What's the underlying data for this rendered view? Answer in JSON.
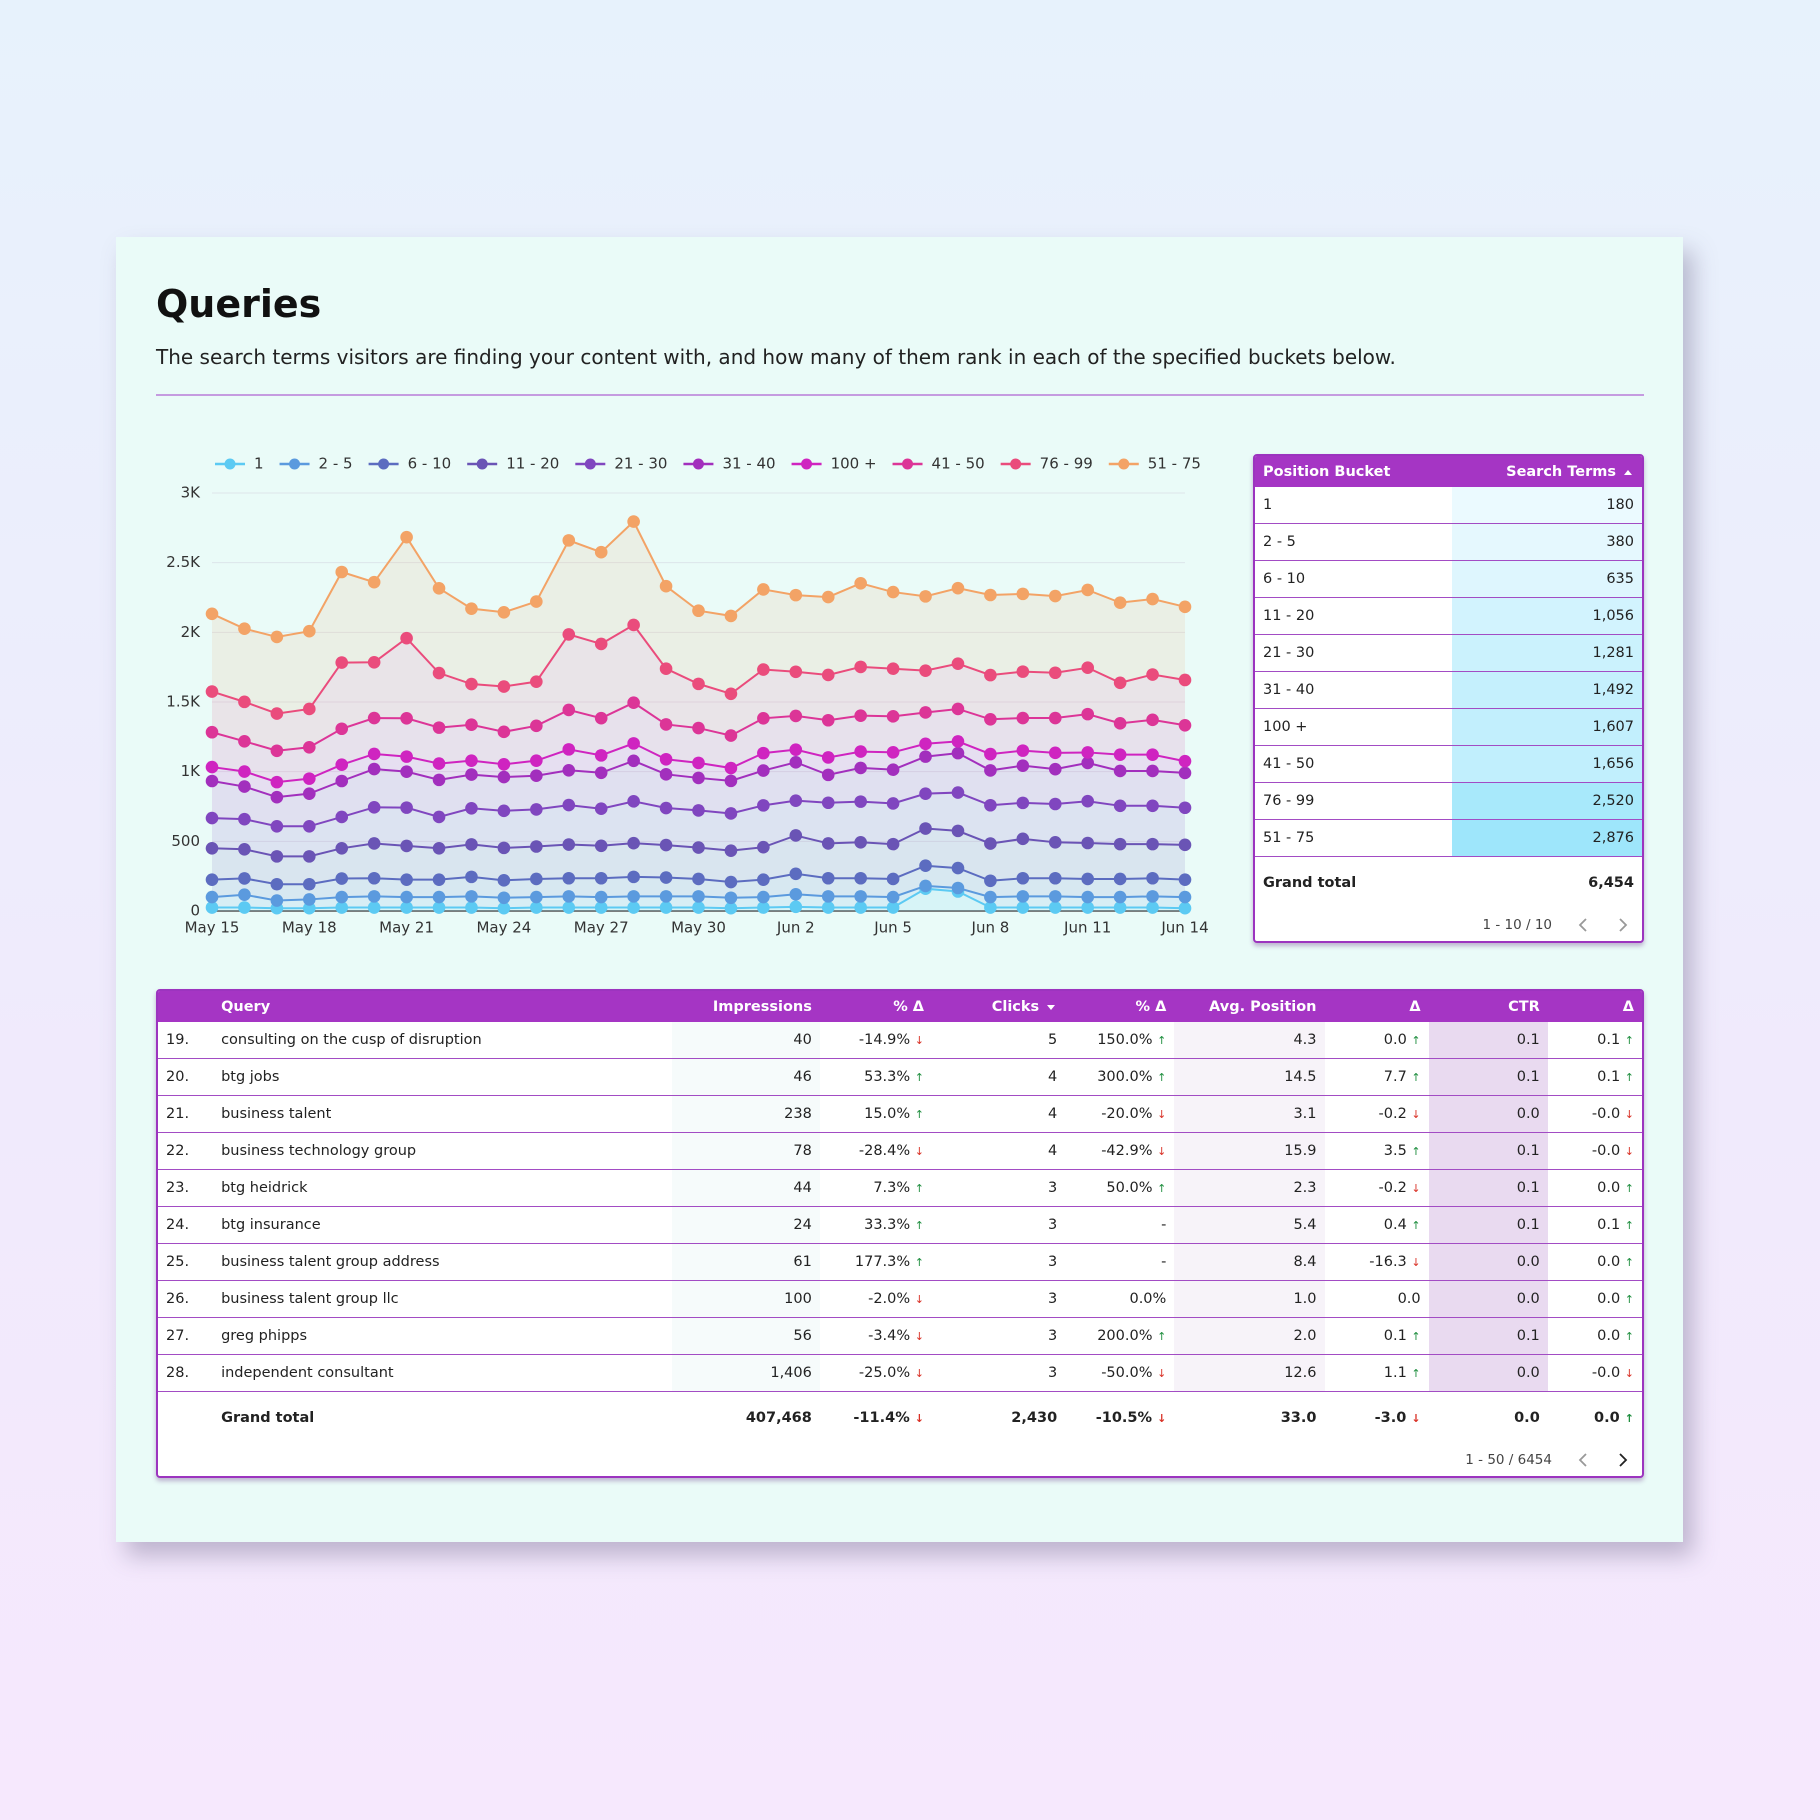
{
  "header": {
    "title": "Queries",
    "subtitle": "The search terms visitors are finding your content with,  and how many of them rank in each of the specified buckets below."
  },
  "chart_data": {
    "type": "line",
    "stacked": true,
    "area": true,
    "legend": "top",
    "grid": true,
    "x": [
      "May 15",
      null,
      null,
      "May 18",
      null,
      null,
      "May 21",
      null,
      null,
      "May 24",
      null,
      null,
      "May 27",
      null,
      null,
      "May 30",
      null,
      null,
      "Jun 2",
      null,
      null,
      "Jun 5",
      null,
      null,
      "Jun 8",
      null,
      null,
      "Jun 11",
      null,
      null,
      "Jun 14"
    ],
    "ylim": [
      0,
      3000
    ],
    "yticks": [
      0,
      500,
      {
        "value": 1000,
        "label": "1K"
      },
      {
        "value": 1500,
        "label": "1.5K"
      },
      {
        "value": 2000,
        "label": "2K"
      },
      {
        "value": 2500,
        "label": "2.5K"
      },
      {
        "value": 3000,
        "label": "3K"
      }
    ],
    "series": [
      {
        "name": "1",
        "color": "#5ccaf3",
        "values": [
          25,
          25,
          20,
          20,
          25,
          25,
          25,
          25,
          25,
          20,
          25,
          25,
          25,
          25,
          25,
          25,
          20,
          25,
          30,
          25,
          25,
          25,
          160,
          140,
          25,
          25,
          25,
          25,
          25,
          25,
          20
        ]
      },
      {
        "name": "2 - 5",
        "color": "#5b9ade",
        "values": [
          75,
          92,
          55,
          63,
          75,
          80,
          75,
          75,
          80,
          75,
          75,
          80,
          75,
          80,
          80,
          80,
          75,
          75,
          90,
          80,
          80,
          75,
          20,
          25,
          75,
          80,
          80,
          75,
          75,
          80,
          80
        ]
      },
      {
        "name": "6 - 10",
        "color": "#5c6cc0",
        "values": [
          125,
          117,
          117,
          109,
          133,
          130,
          125,
          125,
          140,
          125,
          130,
          130,
          135,
          140,
          135,
          125,
          113,
          125,
          147,
          130,
          130,
          130,
          145,
          143,
          117,
          130,
          130,
          130,
          130,
          130,
          125
        ]
      },
      {
        "name": "11 - 20",
        "color": "#6a54b5",
        "values": [
          225,
          209,
          200,
          200,
          217,
          250,
          242,
          225,
          233,
          233,
          233,
          242,
          233,
          242,
          233,
          225,
          225,
          233,
          275,
          250,
          258,
          250,
          267,
          267,
          267,
          283,
          258,
          258,
          250,
          245,
          250
        ]
      },
      {
        "name": "21 - 30",
        "color": "#8046bf",
        "values": [
          217,
          216,
          216,
          216,
          225,
          259,
          275,
          225,
          259,
          266,
          266,
          283,
          266,
          300,
          266,
          267,
          267,
          300,
          250,
          292,
          292,
          292,
          250,
          275,
          275,
          258,
          275,
          300,
          275,
          275,
          266
        ]
      },
      {
        "name": "31 - 40",
        "color": "#a22fbd",
        "values": [
          266,
          234,
          209,
          234,
          258,
          275,
          258,
          266,
          242,
          242,
          242,
          250,
          258,
          291,
          242,
          233,
          234,
          250,
          275,
          200,
          242,
          242,
          266,
          283,
          250,
          267,
          250,
          275,
          250,
          250,
          250
        ]
      },
      {
        "name": "100 +",
        "color": "#cf24c0",
        "values": [
          100,
          108,
          108,
          108,
          117,
          108,
          108,
          117,
          100,
          92,
          108,
          150,
          125,
          125,
          108,
          108,
          92,
          125,
          91,
          125,
          117,
          125,
          92,
          84,
          117,
          108,
          117,
          75,
          117,
          117,
          84
        ]
      },
      {
        "name": "41 - 50",
        "color": "#dc3597",
        "values": [
          250,
          217,
          225,
          225,
          258,
          258,
          275,
          258,
          258,
          233,
          250,
          283,
          267,
          292,
          250,
          250,
          233,
          250,
          242,
          267,
          258,
          258,
          225,
          233,
          250,
          234,
          250,
          275,
          225,
          250,
          258
        ]
      },
      {
        "name": "76 - 99",
        "color": "#ea4c7c",
        "values": [
          292,
          283,
          267,
          275,
          475,
          400,
          575,
          392,
          292,
          325,
          317,
          542,
          533,
          558,
          400,
          317,
          300,
          350,
          317,
          325,
          350,
          342,
          300,
          325,
          317,
          333,
          325,
          333,
          291,
          325,
          325
        ]
      },
      {
        "name": "51 - 75",
        "color": "#f3a366",
        "values": [
          558,
          525,
          550,
          558,
          650,
          575,
          725,
          608,
          541,
          533,
          575,
          675,
          658,
          742,
          592,
          525,
          559,
          575,
          550,
          559,
          600,
          550,
          533,
          542,
          575,
          558,
          550,
          558,
          575,
          542,
          525
        ]
      }
    ]
  },
  "bucket_table": {
    "columns": [
      "Position Bucket",
      "Search Terms"
    ],
    "rows": [
      [
        "1",
        "180"
      ],
      [
        "2 - 5",
        "380"
      ],
      [
        "6 - 10",
        "635"
      ],
      [
        "11 - 20",
        "1,056"
      ],
      [
        "21 - 30",
        "1,281"
      ],
      [
        "31 - 40",
        "1,492"
      ],
      [
        "100 +",
        "1,607"
      ],
      [
        "41 - 50",
        "1,656"
      ],
      [
        "76 - 99",
        "2,520"
      ],
      [
        "51 - 75",
        "2,876"
      ]
    ],
    "total": [
      "Grand total",
      "6,454"
    ],
    "pagination": "1 - 10 / 10"
  },
  "query_table": {
    "columns": [
      "Query",
      "Impressions",
      "% Δ",
      "Clicks",
      "% Δ",
      "Avg. Position",
      "Δ",
      "CTR",
      "Δ"
    ],
    "rows": [
      [
        "19.",
        "consulting on the cusp of disruption",
        "40",
        "-14.9% ↓",
        "5",
        "150.0% ↑",
        "4.3",
        "0.0 ↑",
        "0.1",
        "0.1 ↑"
      ],
      [
        "20.",
        "btg jobs",
        "46",
        "53.3% ↑",
        "4",
        "300.0% ↑",
        "14.5",
        "7.7 ↑",
        "0.1",
        "0.1 ↑"
      ],
      [
        "21.",
        "business talent",
        "238",
        "15.0% ↑",
        "4",
        "-20.0% ↓",
        "3.1",
        "-0.2 ↓",
        "0.0",
        "-0.0 ↓"
      ],
      [
        "22.",
        "business technology group",
        "78",
        "-28.4% ↓",
        "4",
        "-42.9% ↓",
        "15.9",
        "3.5 ↑",
        "0.1",
        "-0.0 ↓"
      ],
      [
        "23.",
        "btg heidrick",
        "44",
        "7.3% ↑",
        "3",
        "50.0% ↑",
        "2.3",
        "-0.2 ↓",
        "0.1",
        "0.0 ↑"
      ],
      [
        "24.",
        "btg insurance",
        "24",
        "33.3% ↑",
        "3",
        "-",
        "5.4",
        "0.4 ↑",
        "0.1",
        "0.1 ↑"
      ],
      [
        "25.",
        "business talent group address",
        "61",
        "177.3% ↑",
        "3",
        "-",
        "8.4",
        "-16.3 ↓",
        "0.0",
        "0.0 ↑"
      ],
      [
        "26.",
        "business talent group llc",
        "100",
        "-2.0% ↓",
        "3",
        "0.0%",
        "1.0",
        "0.0",
        "0.0",
        "0.0 ↑"
      ],
      [
        "27.",
        "greg phipps",
        "56",
        "-3.4% ↓",
        "3",
        "200.0% ↑",
        "2.0",
        "0.1 ↑",
        "0.1",
        "0.0 ↑"
      ],
      [
        "28.",
        "independent consultant",
        "1,406",
        "-25.0% ↓",
        "3",
        "-50.0% ↓",
        "12.6",
        "1.1 ↑",
        "0.0",
        "-0.0 ↓"
      ]
    ],
    "total": [
      "Grand total",
      "407,468",
      "-11.4% ↓",
      "2,430",
      "-10.5% ↓",
      "33.0",
      "-3.0 ↓",
      "0.0",
      "0.0 ↑"
    ],
    "pagination": "1 - 50 / 6454"
  }
}
